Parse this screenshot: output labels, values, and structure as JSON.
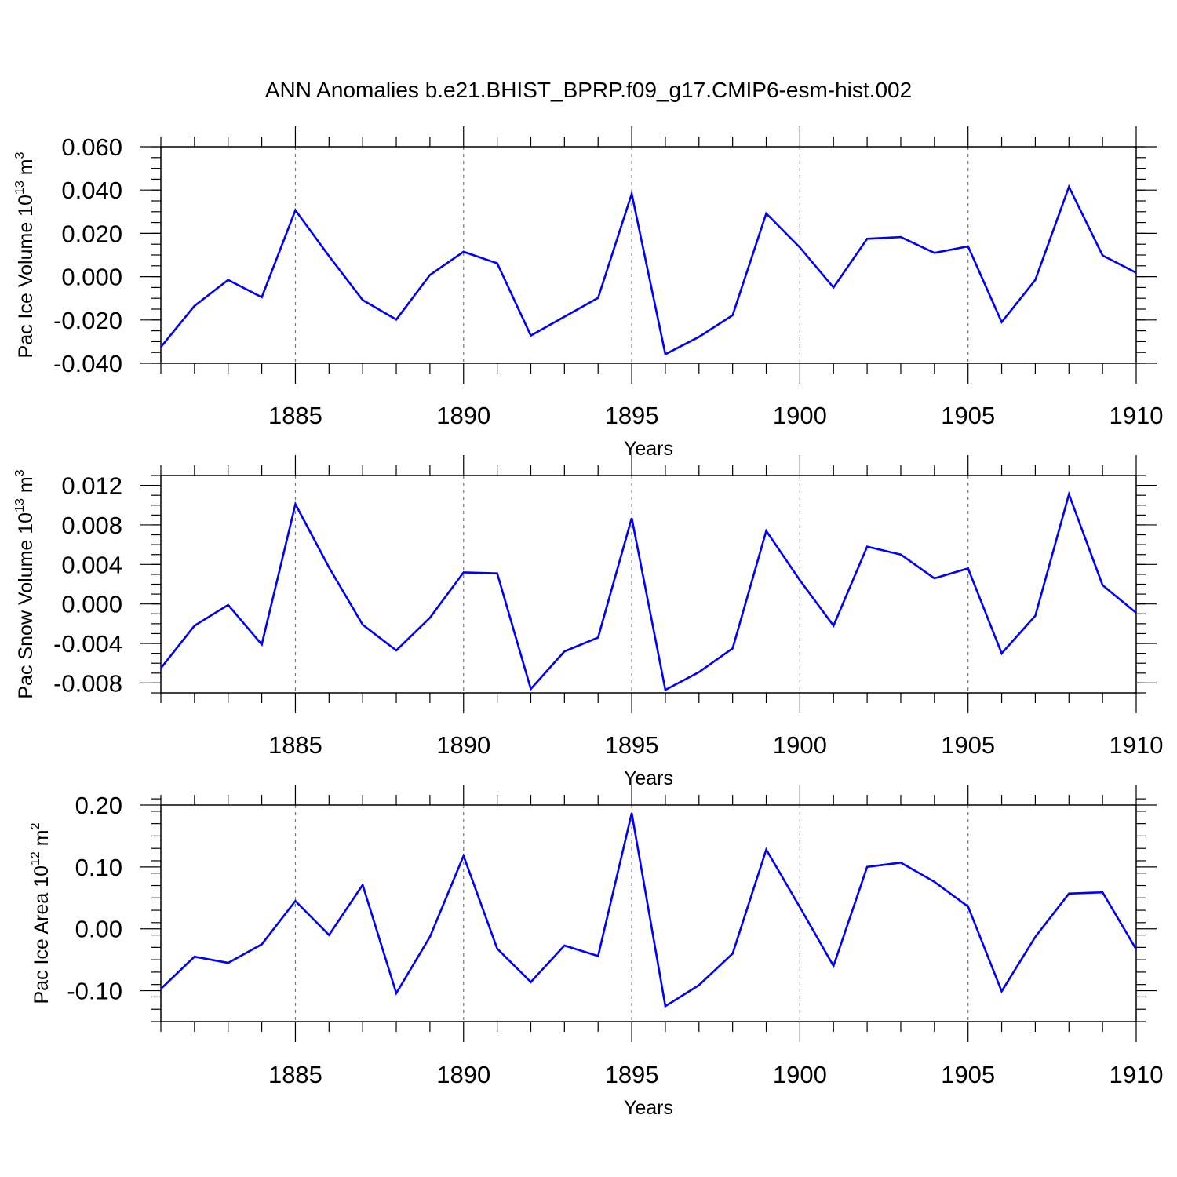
{
  "title": "ANN Anomalies b.e21.BHIST_BPRP.f09_g17.CMIP6-esm-hist.002",
  "colors": {
    "line": "#0000ff",
    "axis": "#000000",
    "grid": "#777777"
  },
  "chart_data": [
    {
      "type": "line",
      "title": "",
      "xlabel": "Years",
      "ylabel_main": "Pac Ice Volume 10",
      "ylabel_exp": "13",
      "ylabel_unit": " m",
      "ylabel_unit_exp": "3",
      "xlim": [
        1881,
        1910
      ],
      "ylim": [
        -0.04,
        0.06
      ],
      "x_major_ticks": [
        1885,
        1890,
        1895,
        1900,
        1905,
        1910
      ],
      "x_tick_labels": [
        "1885",
        "1890",
        "1895",
        "1900",
        "1905",
        "1910"
      ],
      "y_major_ticks": [
        -0.04,
        -0.02,
        0.0,
        0.02,
        0.04,
        0.06
      ],
      "y_tick_labels": [
        "-0.040",
        "-0.020",
        "0.000",
        "0.020",
        "0.040",
        "0.060"
      ],
      "y_minor_step": 0.005,
      "grid": "vertical dashed at major x ticks",
      "x": [
        1881,
        1882,
        1883,
        1884,
        1885,
        1886,
        1887,
        1888,
        1889,
        1890,
        1891,
        1892,
        1893,
        1894,
        1895,
        1896,
        1897,
        1898,
        1899,
        1900,
        1901,
        1902,
        1903,
        1904,
        1905,
        1906,
        1907,
        1908,
        1909,
        1910
      ],
      "series": [
        {
          "values": [
            -0.0325,
            -0.0135,
            -0.0015,
            -0.0095,
            0.0307,
            0.0095,
            -0.0108,
            -0.0198,
            0.0008,
            0.0115,
            0.0062,
            -0.0272,
            -0.0185,
            -0.0098,
            0.0383,
            -0.0358,
            -0.0278,
            -0.0178,
            0.0292,
            0.0135,
            -0.005,
            0.0175,
            0.0183,
            0.011,
            0.014,
            -0.021,
            -0.0015,
            0.0415,
            0.0098,
            0.0018
          ]
        }
      ]
    },
    {
      "type": "line",
      "title": "",
      "xlabel": "Years",
      "ylabel_main": "Pac Snow Volume 10",
      "ylabel_exp": "13",
      "ylabel_unit": " m",
      "ylabel_unit_exp": "3",
      "xlim": [
        1881,
        1910
      ],
      "ylim": [
        -0.009,
        0.013
      ],
      "x_major_ticks": [
        1885,
        1890,
        1895,
        1900,
        1905,
        1910
      ],
      "x_tick_labels": [
        "1885",
        "1890",
        "1895",
        "1900",
        "1905",
        "1910"
      ],
      "y_major_ticks": [
        -0.008,
        -0.004,
        0.0,
        0.004,
        0.008,
        0.012
      ],
      "y_tick_labels": [
        "-0.008",
        "-0.004",
        "0.000",
        "0.004",
        "0.008",
        "0.012"
      ],
      "y_minor_step": 0.001,
      "grid": "vertical dashed at major x ticks",
      "x": [
        1881,
        1882,
        1883,
        1884,
        1885,
        1886,
        1887,
        1888,
        1889,
        1890,
        1891,
        1892,
        1893,
        1894,
        1895,
        1896,
        1897,
        1898,
        1899,
        1900,
        1901,
        1902,
        1903,
        1904,
        1905,
        1906,
        1907,
        1908,
        1909,
        1910
      ],
      "series": [
        {
          "values": [
            -0.0065,
            -0.0022,
            -0.0001,
            -0.0041,
            0.0101,
            0.0037,
            -0.0021,
            -0.0047,
            -0.0014,
            0.0032,
            0.0031,
            -0.0086,
            -0.0048,
            -0.0034,
            0.0087,
            -0.0087,
            -0.0069,
            -0.0045,
            0.0074,
            0.0024,
            -0.0022,
            0.0058,
            0.005,
            0.0026,
            0.0036,
            -0.005,
            -0.0012,
            0.0111,
            0.0019,
            -0.0009
          ]
        }
      ]
    },
    {
      "type": "line",
      "title": "",
      "xlabel": "Years",
      "ylabel_main": "Pac Ice Area 10",
      "ylabel_exp": "12",
      "ylabel_unit": " m",
      "ylabel_unit_exp": "2",
      "xlim": [
        1881,
        1910
      ],
      "ylim": [
        -0.15,
        0.2
      ],
      "x_major_ticks": [
        1885,
        1890,
        1895,
        1900,
        1905,
        1910
      ],
      "x_tick_labels": [
        "1885",
        "1890",
        "1895",
        "1900",
        "1905",
        "1910"
      ],
      "y_major_ticks": [
        -0.1,
        0.0,
        0.1,
        0.2
      ],
      "y_tick_labels": [
        "-0.10",
        "0.00",
        "0.10",
        "0.20"
      ],
      "y_minor_step": 0.02,
      "grid": "vertical dashed at major x ticks",
      "x": [
        1881,
        1882,
        1883,
        1884,
        1885,
        1886,
        1887,
        1888,
        1889,
        1890,
        1891,
        1892,
        1893,
        1894,
        1895,
        1896,
        1897,
        1898,
        1899,
        1900,
        1901,
        1902,
        1903,
        1904,
        1905,
        1906,
        1907,
        1908,
        1909,
        1910
      ],
      "series": [
        {
          "values": [
            -0.097,
            -0.045,
            -0.055,
            -0.025,
            0.045,
            -0.01,
            0.071,
            -0.104,
            -0.013,
            0.118,
            -0.032,
            -0.086,
            -0.027,
            -0.044,
            0.187,
            -0.125,
            -0.091,
            -0.04,
            0.128,
            0.035,
            -0.06,
            0.1,
            0.107,
            0.076,
            0.036,
            -0.101,
            -0.013,
            0.057,
            0.059,
            -0.033
          ]
        }
      ]
    }
  ]
}
